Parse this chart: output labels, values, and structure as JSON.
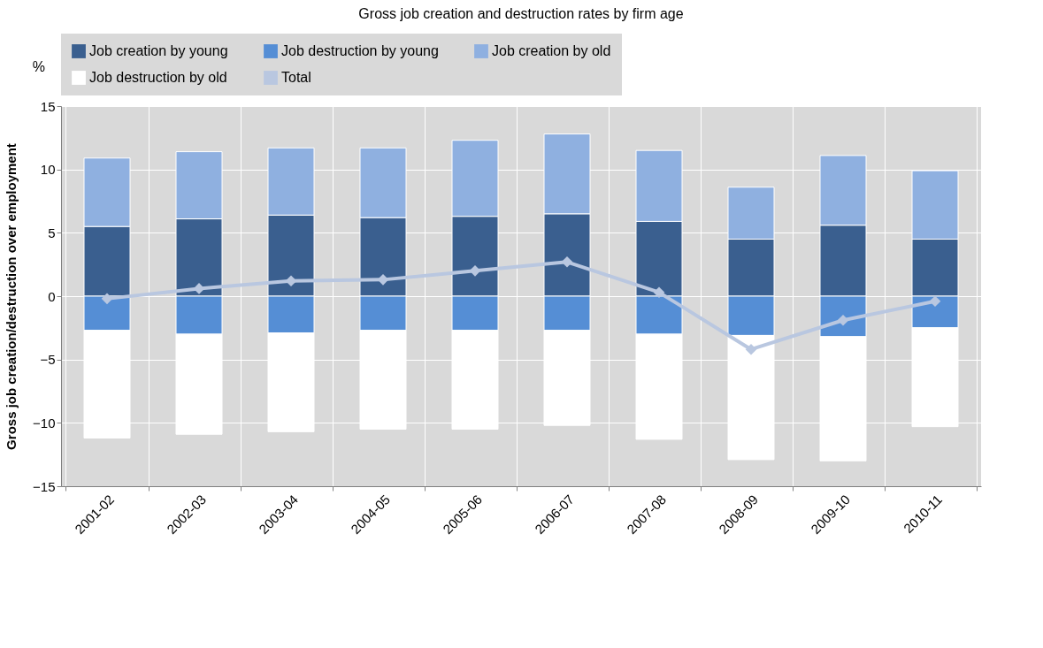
{
  "chart_data": {
    "type": "bar",
    "title": "Gross job creation and destruction rates by firm age",
    "ylabel": "Gross job creation/destruction over employment",
    "annotations": [
      "%"
    ],
    "categories": [
      "2001-02",
      "2002-03",
      "2003-04",
      "2004-05",
      "2005-06",
      "2006-07",
      "2007-08",
      "2008-09",
      "2009-10",
      "2010-11"
    ],
    "stacked": true,
    "ylim": [
      -15,
      15
    ],
    "yticks": [
      -15,
      -10,
      -5,
      0,
      5,
      10,
      15
    ],
    "grid": true,
    "legend": "top",
    "series": [
      {
        "name": "Job creation by young",
        "color": "#3a5f8f",
        "values": [
          5.5,
          6.1,
          6.4,
          6.2,
          6.3,
          6.5,
          5.9,
          4.5,
          5.6,
          4.5
        ]
      },
      {
        "name": "Job destruction by young",
        "color": "#558ed5",
        "values": [
          -2.7,
          -3.0,
          -2.9,
          -2.7,
          -2.7,
          -2.7,
          -3.0,
          -3.1,
          -3.2,
          -2.5
        ]
      },
      {
        "name": "Job creation by old",
        "color": "#8fb0e0",
        "values": [
          5.4,
          5.3,
          5.3,
          5.5,
          6.0,
          6.3,
          5.6,
          4.1,
          5.5,
          5.4
        ]
      },
      {
        "name": "Job destruction by old",
        "color": "#ffffff",
        "values": [
          -8.5,
          -7.9,
          -7.8,
          -7.8,
          -7.8,
          -7.5,
          -8.3,
          -9.8,
          -9.8,
          -7.8
        ]
      },
      {
        "name": "Total",
        "type": "line",
        "marker": "diamond",
        "color": "#b9c7e0",
        "values": [
          -0.2,
          0.6,
          1.2,
          1.3,
          2.0,
          2.7,
          0.3,
          -4.2,
          -1.9,
          -0.4
        ]
      }
    ]
  }
}
